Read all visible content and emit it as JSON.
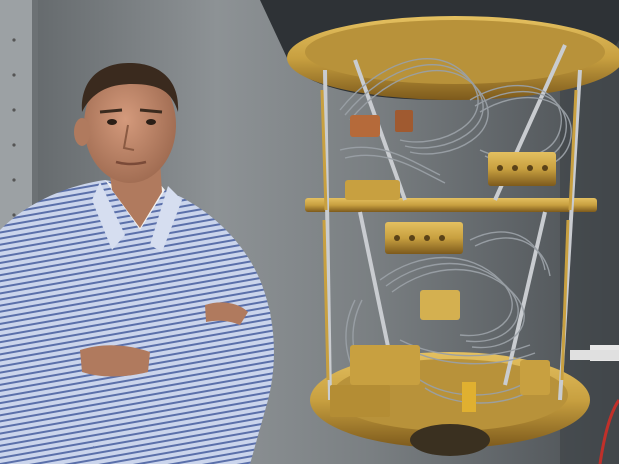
{
  "photo": {
    "subjects": [
      "person",
      "quantum-computer-cryostat"
    ],
    "colors": {
      "wall": "#8a8f92",
      "wall_dark": "#4d5256",
      "shirt": "#b9c6e2",
      "shirt_stripe": "#5a6fa8",
      "skin": "#c48a6c",
      "hair": "#3a2a1e",
      "gold": "#c8a040",
      "gold_dark": "#8a6520",
      "wire": "#9aa0a6",
      "copper": "#b56a3a",
      "cable_red": "#c0302a"
    }
  }
}
